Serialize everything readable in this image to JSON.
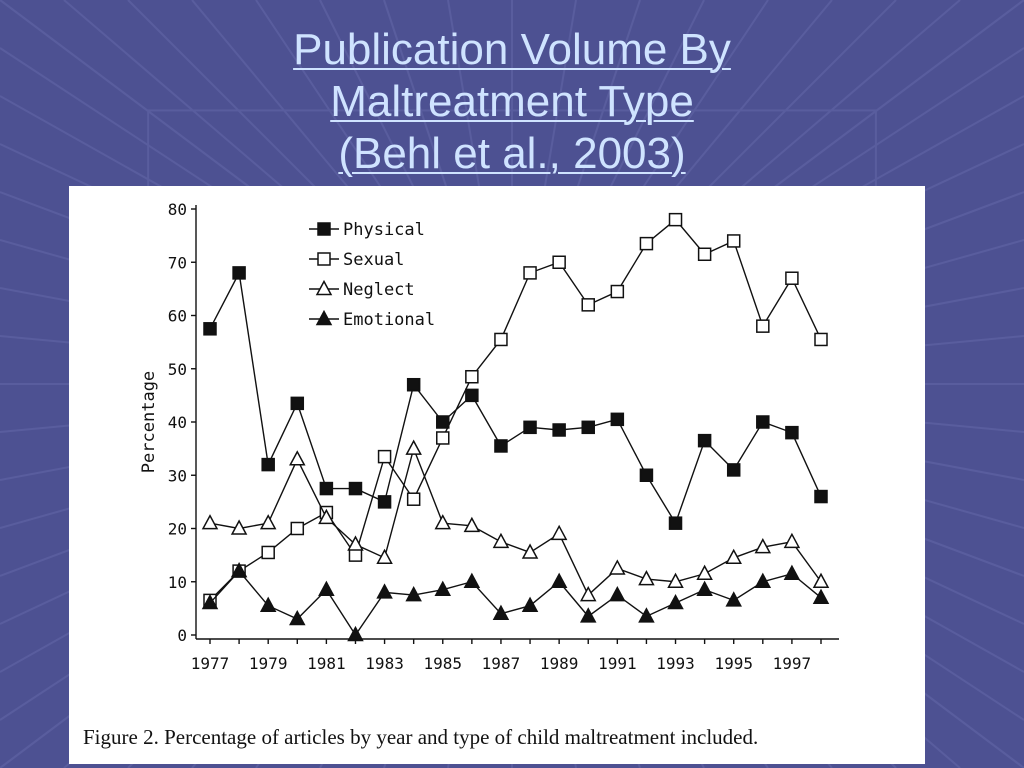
{
  "slide": {
    "title_line1": "Publication Volume By",
    "title_line2": "Maltreatment Type",
    "title_line3": "(Behl et al., 2003)"
  },
  "figure": {
    "caption": "Figure 2. Percentage of articles by year and type of child maltreatment included."
  },
  "colors": {
    "background": "#4d5192",
    "title_text": "#cfe3ff",
    "chart_ink": "#111111"
  },
  "chart_data": {
    "type": "line",
    "title": "",
    "xlabel": "",
    "ylabel": "Percentage",
    "x": [
      1977,
      1978,
      1979,
      1980,
      1981,
      1982,
      1983,
      1984,
      1985,
      1986,
      1987,
      1988,
      1989,
      1990,
      1991,
      1992,
      1993,
      1994,
      1995,
      1996,
      1997,
      1998
    ],
    "xtick_labels": [
      "1977",
      "1979",
      "1981",
      "1983",
      "1985",
      "1987",
      "1989",
      "1991",
      "1993",
      "1995",
      "1997"
    ],
    "ylim": [
      0,
      80
    ],
    "yticks": [
      0,
      10,
      20,
      30,
      40,
      50,
      60,
      70,
      80
    ],
    "grid": false,
    "legend_position": "top-left",
    "series": [
      {
        "name": "Physical",
        "marker": "filled-square",
        "values": [
          57.5,
          68,
          32,
          43.5,
          27.5,
          27.5,
          25,
          47,
          40,
          45,
          35.5,
          39,
          38.5,
          39,
          40.5,
          30,
          21,
          36.5,
          31,
          40,
          38,
          26
        ]
      },
      {
        "name": "Sexual",
        "marker": "open-square",
        "values": [
          6.5,
          12,
          15.5,
          20,
          23,
          15,
          33.5,
          25.5,
          37,
          48.5,
          55.5,
          68,
          70,
          62,
          64.5,
          73.5,
          78,
          71.5,
          74,
          58,
          67,
          55.5
        ]
      },
      {
        "name": "Neglect",
        "marker": "open-triangle",
        "values": [
          21,
          20,
          21,
          33,
          22,
          17,
          14.5,
          35,
          21,
          20.5,
          17.5,
          15.5,
          19,
          7.5,
          12.5,
          10.5,
          10,
          11.5,
          14.5,
          16.5,
          17.5,
          10
        ]
      },
      {
        "name": "Emotional",
        "marker": "filled-triangle",
        "values": [
          6,
          12,
          5.5,
          3,
          8.5,
          0,
          8,
          7.5,
          8.5,
          10,
          4,
          5.5,
          10,
          3.5,
          7.5,
          3.5,
          6,
          8.5,
          6.5,
          10,
          11.5,
          7
        ]
      }
    ]
  }
}
